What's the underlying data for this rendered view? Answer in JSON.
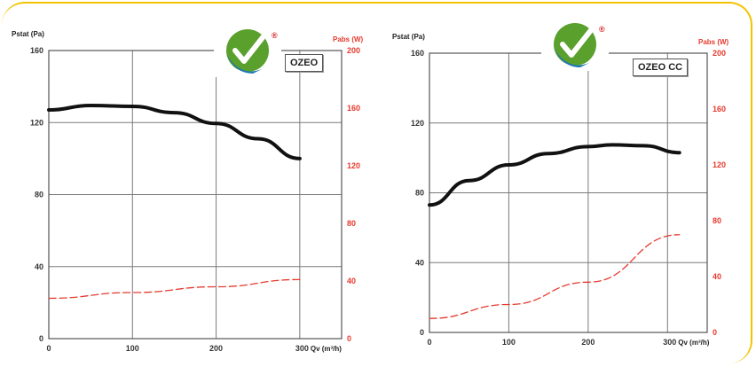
{
  "chart_data": [
    {
      "type": "line",
      "model": "OZEO",
      "ylabel": "Pstat (Pa)",
      "y2label": "Pabs (W)",
      "xlabel": "Qv (m³/h)",
      "xlim": [
        0,
        350
      ],
      "ylim": [
        0,
        160
      ],
      "y2lim": [
        0,
        200
      ],
      "xticks": [
        0,
        100,
        200,
        300
      ],
      "yticks": [
        0,
        40,
        80,
        120,
        160
      ],
      "y2ticks": [
        0,
        40,
        80,
        120,
        160,
        200
      ],
      "series": [
        {
          "axis": "left",
          "color": "#111111",
          "style": "solid",
          "x": [
            0,
            50,
            100,
            150,
            200,
            250,
            300
          ],
          "y": [
            127,
            129.5,
            129,
            125.5,
            119.5,
            111,
            100
          ]
        },
        {
          "axis": "right",
          "color": "#e63a2e",
          "style": "dashed",
          "x": [
            0,
            100,
            200,
            300
          ],
          "y": [
            28,
            32,
            36,
            41
          ]
        }
      ]
    },
    {
      "type": "line",
      "model": "OZEO CC",
      "ylabel": "Pstat (Pa)",
      "y2label": "Pabs (W)",
      "xlabel": "Qv (m³/h)",
      "xlim": [
        0,
        350
      ],
      "ylim": [
        0,
        160
      ],
      "y2lim": [
        0,
        200
      ],
      "xticks": [
        0,
        100,
        200,
        300
      ],
      "yticks": [
        0,
        40,
        80,
        120,
        160
      ],
      "y2ticks": [
        0,
        40,
        80,
        120,
        160,
        200
      ],
      "series": [
        {
          "axis": "left",
          "color": "#111111",
          "style": "solid",
          "x": [
            0,
            50,
            100,
            150,
            200,
            230,
            270,
            315
          ],
          "y": [
            73,
            87,
            96,
            102.5,
            106.5,
            107.5,
            107,
            103
          ]
        },
        {
          "axis": "right",
          "color": "#e63a2e",
          "style": "dashed",
          "x": [
            0,
            100,
            200,
            315
          ],
          "y": [
            10,
            20,
            36,
            70
          ]
        }
      ]
    }
  ],
  "labels": {
    "left_title": "Pstat (Pa)",
    "right_title": "Pabs (W)",
    "x_last_tick": "300",
    "x_unit": "Qv (m³/h)"
  },
  "logo": {
    "icon": "checkmark-logo-icon",
    "green": "#5aa02c",
    "blue": "#1e78b4",
    "red": "#d02020"
  }
}
